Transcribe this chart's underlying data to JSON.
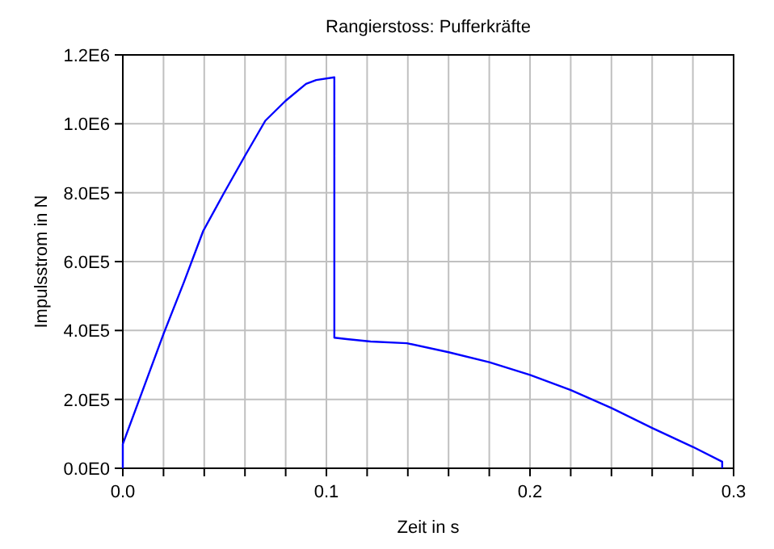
{
  "chart_data": {
    "type": "line",
    "title": "Rangierstoss: Pufferkräfte",
    "xlabel": "Zeit in s",
    "ylabel": "Impulsstrom in N",
    "x": [
      0,
      0,
      0.01,
      0.02,
      0.03,
      0.0395,
      0.0496,
      0.06,
      0.07,
      0.08,
      0.09,
      0.095,
      0.1039,
      0.1039,
      0.11,
      0.1217,
      0.1395,
      0.16,
      0.18,
      0.2,
      0.22,
      0.24,
      0.26,
      0.28,
      0.2944,
      0.2944
    ],
    "series": [
      {
        "color": "#0000ff",
        "values": [
          0,
          70000,
          230000,
          390000,
          540000,
          689000,
          798000,
          907000,
          1009000,
          1067000,
          1116000,
          1127000,
          1135000,
          379000,
          375000,
          368000,
          363000,
          337000,
          308000,
          271000,
          227000,
          175000,
          117000,
          62000,
          19000,
          0
        ]
      }
    ],
    "xlim": [
      0,
      0.3
    ],
    "xticks": [
      {
        "value": 0,
        "label": "0.0"
      },
      {
        "value": 0.02,
        "label": null
      },
      {
        "value": 0.04,
        "label": null
      },
      {
        "value": 0.06,
        "label": null
      },
      {
        "value": 0.08,
        "label": null
      },
      {
        "value": 0.1,
        "label": "0.1"
      },
      {
        "value": 0.12,
        "label": null
      },
      {
        "value": 0.14,
        "label": null
      },
      {
        "value": 0.16,
        "label": null
      },
      {
        "value": 0.18,
        "label": null
      },
      {
        "value": 0.2,
        "label": "0.2"
      },
      {
        "value": 0.22,
        "label": null
      },
      {
        "value": 0.24,
        "label": null
      },
      {
        "value": 0.26,
        "label": null
      },
      {
        "value": 0.28,
        "label": null
      },
      {
        "value": 0.3,
        "label": "0.3"
      }
    ],
    "ylim": [
      0,
      1200000
    ],
    "yticks": [
      {
        "value": 0,
        "label": "0.0E0"
      },
      {
        "value": 200000,
        "label": "2.0E5"
      },
      {
        "value": 400000,
        "label": "4.0E5"
      },
      {
        "value": 600000,
        "label": "6.0E5"
      },
      {
        "value": 800000,
        "label": "8.0E5"
      },
      {
        "value": 1000000,
        "label": "1.0E6"
      },
      {
        "value": 1200000,
        "label": "1.2E6"
      }
    ],
    "grid": true,
    "marker": "none",
    "line_style": "solid"
  }
}
